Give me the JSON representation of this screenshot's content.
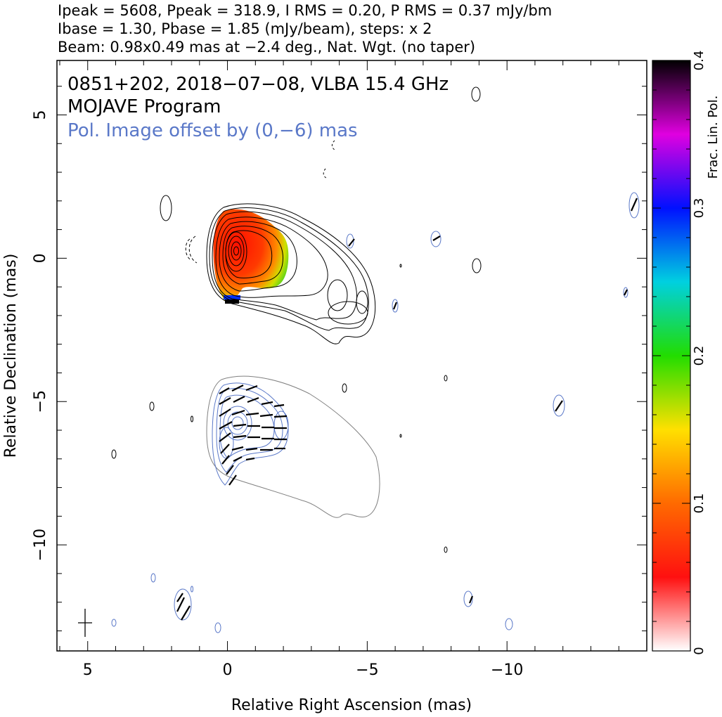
{
  "header": {
    "line1": "Ipeak = 5608, Ppeak = 318.9, I RMS = 0.20, P RMS = 0.37 mJy/bm",
    "line2": "Ibase = 1.30, Pbase = 1.85 (mJy/beam), steps: x 2",
    "line3": "Beam: 0.98x0.49 mas at −2.4 deg., Nat. Wgt. (no taper)"
  },
  "annotations": {
    "source": "0851+202, 2018−07−08, VLBA 15.4 GHz",
    "program": "MOJAVE Program",
    "offset": "Pol. Image offset by (0,−6) mas"
  },
  "colors": {
    "total_intensity_contour": "#000000",
    "polarization_contour": "#5a78c8",
    "base_contour": "#808080",
    "annotation_blue": "#5a78c8"
  },
  "chart_data": {
    "type": "heatmap",
    "title": "0851+202, 2018−07−08, VLBA 15.4 GHz",
    "xlabel": "Relative Right Ascension (mas)",
    "ylabel": "Relative Declination (mas)",
    "xlim": [
      6.1,
      -15.0
    ],
    "ylim": [
      -13.7,
      6.9
    ],
    "x_axis_reversed": true,
    "x_ticks": [
      5,
      0,
      -5,
      -10
    ],
    "x_tick_labels": [
      "5",
      "0",
      "−5",
      "−10"
    ],
    "y_ticks": [
      5,
      0,
      -5,
      -10
    ],
    "y_tick_labels": [
      "5",
      "0",
      "−5",
      "−10"
    ],
    "grid": false,
    "colorbar": {
      "label": "Frac. Lin. Pol.",
      "range": [
        0,
        0.4
      ],
      "ticks": [
        0,
        0.1,
        0.2,
        0.3,
        0.4
      ],
      "tick_labels": [
        "0",
        "0.1",
        "0.2",
        "0.3",
        "0.4"
      ],
      "colormap": [
        {
          "value": 0.0,
          "color": "#ffffff"
        },
        {
          "value": 0.05,
          "color": "#ff1010"
        },
        {
          "value": 0.1,
          "color": "#ff6a00"
        },
        {
          "value": 0.15,
          "color": "#ffe000"
        },
        {
          "value": 0.2,
          "color": "#22dd00"
        },
        {
          "value": 0.25,
          "color": "#00d0e0"
        },
        {
          "value": 0.3,
          "color": "#0010ff"
        },
        {
          "value": 0.35,
          "color": "#e000e0"
        },
        {
          "value": 0.4,
          "color": "#000000"
        }
      ]
    },
    "stokes_i": {
      "core": [
        0.0,
        0.15
      ],
      "peak_mJy_per_beam": 5608,
      "base_mJy_per_beam": 1.3,
      "contour_step": 2
    },
    "polarization": {
      "peak_mJy_per_beam": 318.9,
      "base_mJy_per_beam": 1.85,
      "offset_mas": [
        0,
        -6
      ],
      "fractional_pol_core": 0.05,
      "fractional_pol_jet": 0.2
    },
    "beam": {
      "major_mas": 0.98,
      "minor_mas": 0.49,
      "pa_deg": -2.4,
      "center": [
        5.1,
        -12.8
      ]
    }
  }
}
